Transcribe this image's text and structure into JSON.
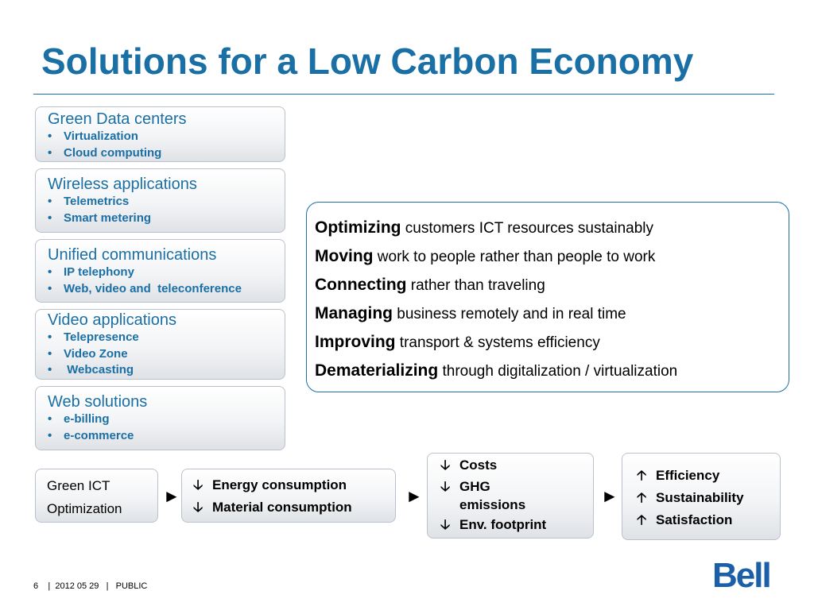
{
  "title": "Solutions for a Low Carbon Economy",
  "categories": [
    {
      "title": "Green Data centers",
      "items": [
        "Virtualization",
        "Cloud computing"
      ]
    },
    {
      "title": "Wireless applications",
      "items": [
        "Telemetrics",
        "Smart metering"
      ]
    },
    {
      "title": "Unified communications",
      "items": [
        "IP telephony",
        "Web, video and  teleconference"
      ]
    },
    {
      "title": "Video applications",
      "items": [
        "Telepresence",
        "Video Zone",
        " Webcasting"
      ]
    },
    {
      "title": "Web solutions",
      "items": [
        "e-billing",
        "e-commerce"
      ]
    }
  ],
  "optimizing": [
    {
      "key": "Optimizing",
      "rest": " customers ICT resources sustainably"
    },
    {
      "key": "Moving",
      "rest": " work to people rather than people to work"
    },
    {
      "key": "Connecting",
      "rest": " rather than traveling"
    },
    {
      "key": "Managing",
      "rest": " business remotely and in real time"
    },
    {
      "key": "Improving",
      "rest": " transport & systems efficiency"
    },
    {
      "key": "Dematerializing",
      "rest": " through digitalization / virtualization"
    }
  ],
  "flow": {
    "start": [
      "Green ICT",
      "Optimization"
    ],
    "arrow": "►",
    "down_symbol": "🡣",
    "up_symbol": "🡡",
    "consumption": [
      "Energy consumption",
      "Material consumption"
    ],
    "costs": [
      "Costs",
      "GHG",
      "emissions",
      "Env. footprint"
    ],
    "benefits": [
      "Efficiency",
      "Sustainability",
      "Satisfaction"
    ]
  },
  "footer": {
    "page": "6",
    "date": "2012 05 29",
    "class": "PUBLIC",
    "sep": "|"
  },
  "logo": "Bell",
  "colors": {
    "accent": "#1a6fa5",
    "logo": "#1a5fa8"
  }
}
